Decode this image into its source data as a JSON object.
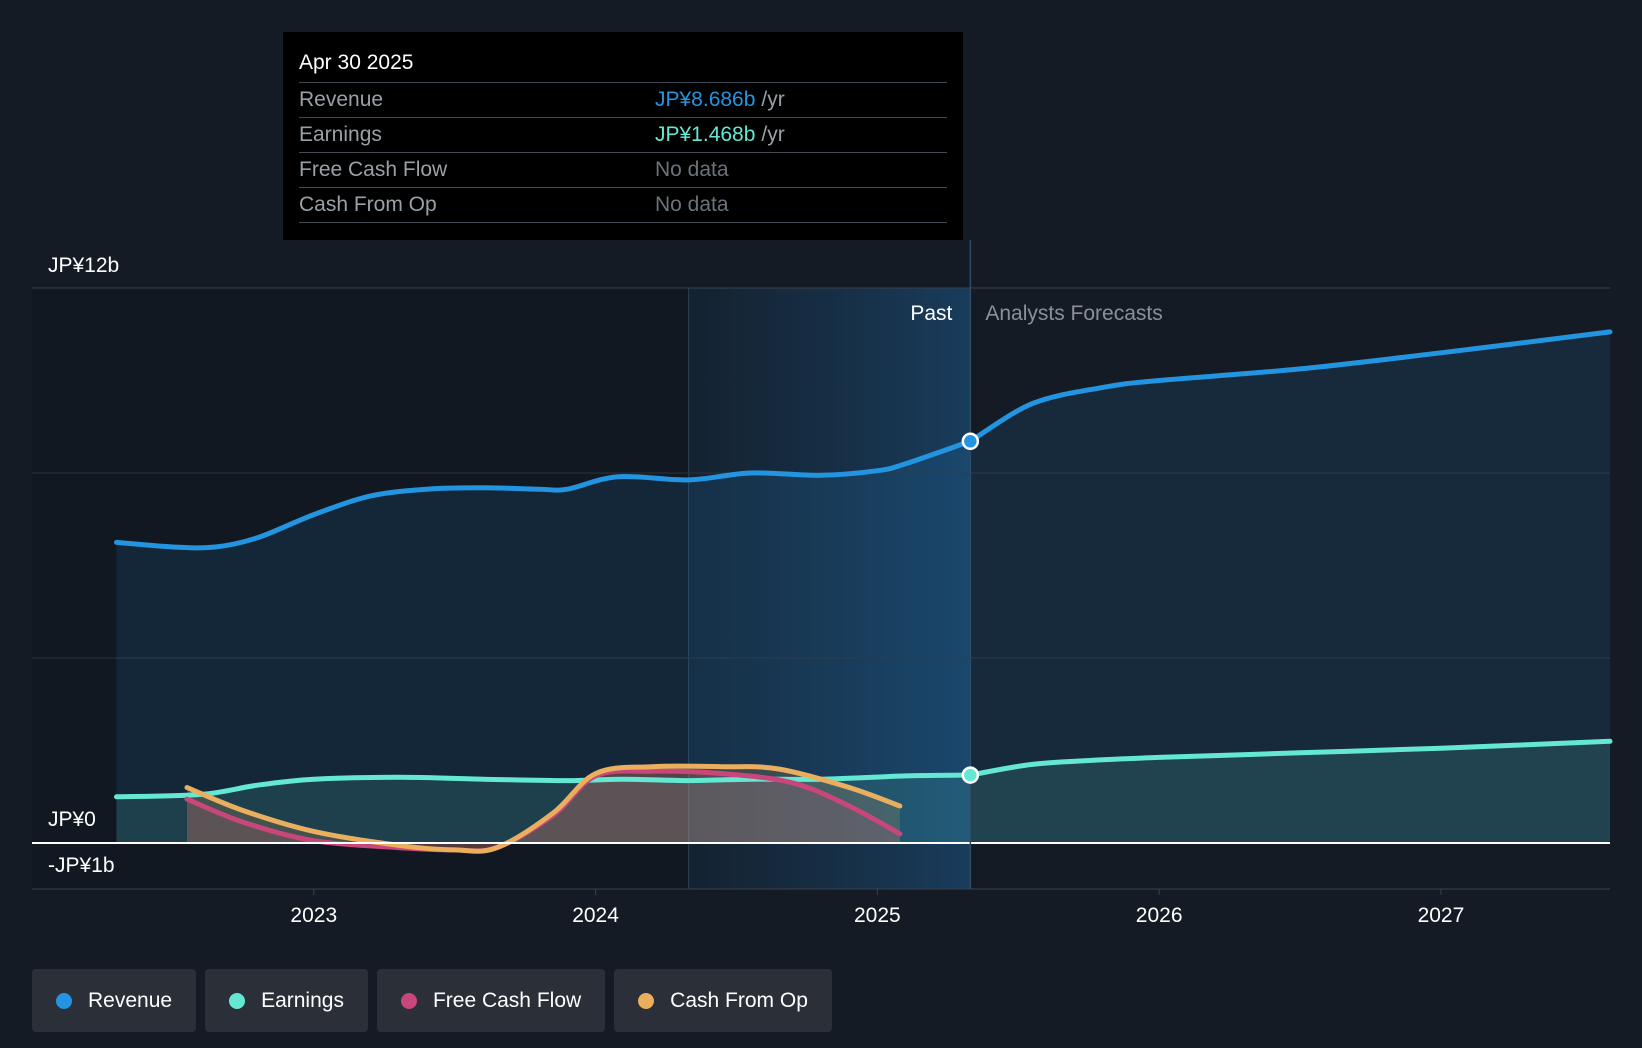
{
  "chart_data": {
    "type": "line",
    "y_axis": {
      "top_label": "JP¥12b",
      "zero_label": "JP¥0",
      "bottom_label": "-JP¥1b",
      "ylim": [
        -1,
        12
      ]
    },
    "x_axis": {
      "ticks": [
        "2023",
        "2024",
        "2025",
        "2026",
        "2027"
      ],
      "xlim": [
        2022.0,
        2027.6
      ]
    },
    "regions": {
      "past_label": "Past",
      "forecast_label": "Analysts Forecasts",
      "divider_x": 2025.33,
      "highlight_start_x": 2024.33
    },
    "colors": {
      "revenue": "#2394df",
      "earnings": "#64e8d3",
      "free_cash_flow": "#c8467a",
      "cash_from_op": "#e9ae5e",
      "background": "#151b24",
      "grid": "#2c323b"
    },
    "series": [
      {
        "name": "Revenue",
        "key": "revenue",
        "x": [
          2022.3,
          2022.5,
          2022.65,
          2022.8,
          2023.0,
          2023.2,
          2023.4,
          2023.6,
          2023.8,
          2023.9,
          2024.08,
          2024.33,
          2024.55,
          2024.8,
          2025.0,
          2025.1,
          2025.33
        ],
        "values": [
          6.5,
          6.4,
          6.4,
          6.6,
          7.1,
          7.5,
          7.65,
          7.68,
          7.65,
          7.65,
          7.92,
          7.85,
          8.0,
          7.95,
          8.05,
          8.2,
          8.686
        ]
      },
      {
        "name": "Revenue Forecast",
        "key": "revenue",
        "x": [
          2025.33,
          2025.55,
          2025.8,
          2026.0,
          2026.5,
          2027.0,
          2027.6
        ],
        "values": [
          8.686,
          9.5,
          9.85,
          10.0,
          10.25,
          10.6,
          11.05
        ]
      },
      {
        "name": "Earnings",
        "key": "earnings",
        "x": [
          2022.3,
          2022.6,
          2022.8,
          2023.0,
          2023.3,
          2023.6,
          2023.9,
          2024.1,
          2024.33,
          2024.55,
          2024.8,
          2025.1,
          2025.33
        ],
        "values": [
          1.0,
          1.05,
          1.25,
          1.38,
          1.42,
          1.38,
          1.35,
          1.38,
          1.35,
          1.38,
          1.38,
          1.45,
          1.468
        ]
      },
      {
        "name": "Earnings Forecast",
        "key": "earnings",
        "x": [
          2025.33,
          2025.55,
          2025.8,
          2026.0,
          2026.5,
          2027.0,
          2027.6
        ],
        "values": [
          1.468,
          1.7,
          1.8,
          1.85,
          1.95,
          2.05,
          2.2
        ]
      },
      {
        "name": "Free Cash Flow",
        "key": "free_cash_flow",
        "x": [
          2022.55,
          2022.75,
          2023.0,
          2023.3,
          2023.5,
          2023.65,
          2023.85,
          2024.0,
          2024.2,
          2024.45,
          2024.7,
          2024.9,
          2025.08
        ],
        "values": [
          0.95,
          0.45,
          0.05,
          -0.1,
          -0.15,
          -0.1,
          0.6,
          1.45,
          1.55,
          1.5,
          1.3,
          0.8,
          0.2
        ]
      },
      {
        "name": "Cash From Op",
        "key": "cash_from_op",
        "x": [
          2022.55,
          2022.75,
          2023.0,
          2023.3,
          2023.5,
          2023.65,
          2023.85,
          2024.0,
          2024.2,
          2024.45,
          2024.65,
          2024.9,
          2025.08
        ],
        "values": [
          1.2,
          0.7,
          0.25,
          -0.05,
          -0.15,
          -0.1,
          0.65,
          1.5,
          1.65,
          1.65,
          1.6,
          1.2,
          0.8
        ]
      }
    ],
    "highlight_points": [
      {
        "key": "revenue",
        "x": 2025.33,
        "value": 8.686
      },
      {
        "key": "earnings",
        "x": 2025.33,
        "value": 1.468
      }
    ]
  },
  "tooltip": {
    "date": "Apr 30 2025",
    "rows": [
      {
        "name": "Revenue",
        "value": "JP¥8.686b",
        "unit": "/yr",
        "color": "#2394df"
      },
      {
        "name": "Earnings",
        "value": "JP¥1.468b",
        "unit": "/yr",
        "color": "#64e8d3"
      },
      {
        "name": "Free Cash Flow",
        "value": "No data",
        "unit": ""
      },
      {
        "name": "Cash From Op",
        "value": "No data",
        "unit": ""
      }
    ]
  },
  "legend": [
    {
      "label": "Revenue",
      "color": "#2394df"
    },
    {
      "label": "Earnings",
      "color": "#64e8d3"
    },
    {
      "label": "Free Cash Flow",
      "color": "#c8467a"
    },
    {
      "label": "Cash From Op",
      "color": "#e9ae5e"
    }
  ]
}
